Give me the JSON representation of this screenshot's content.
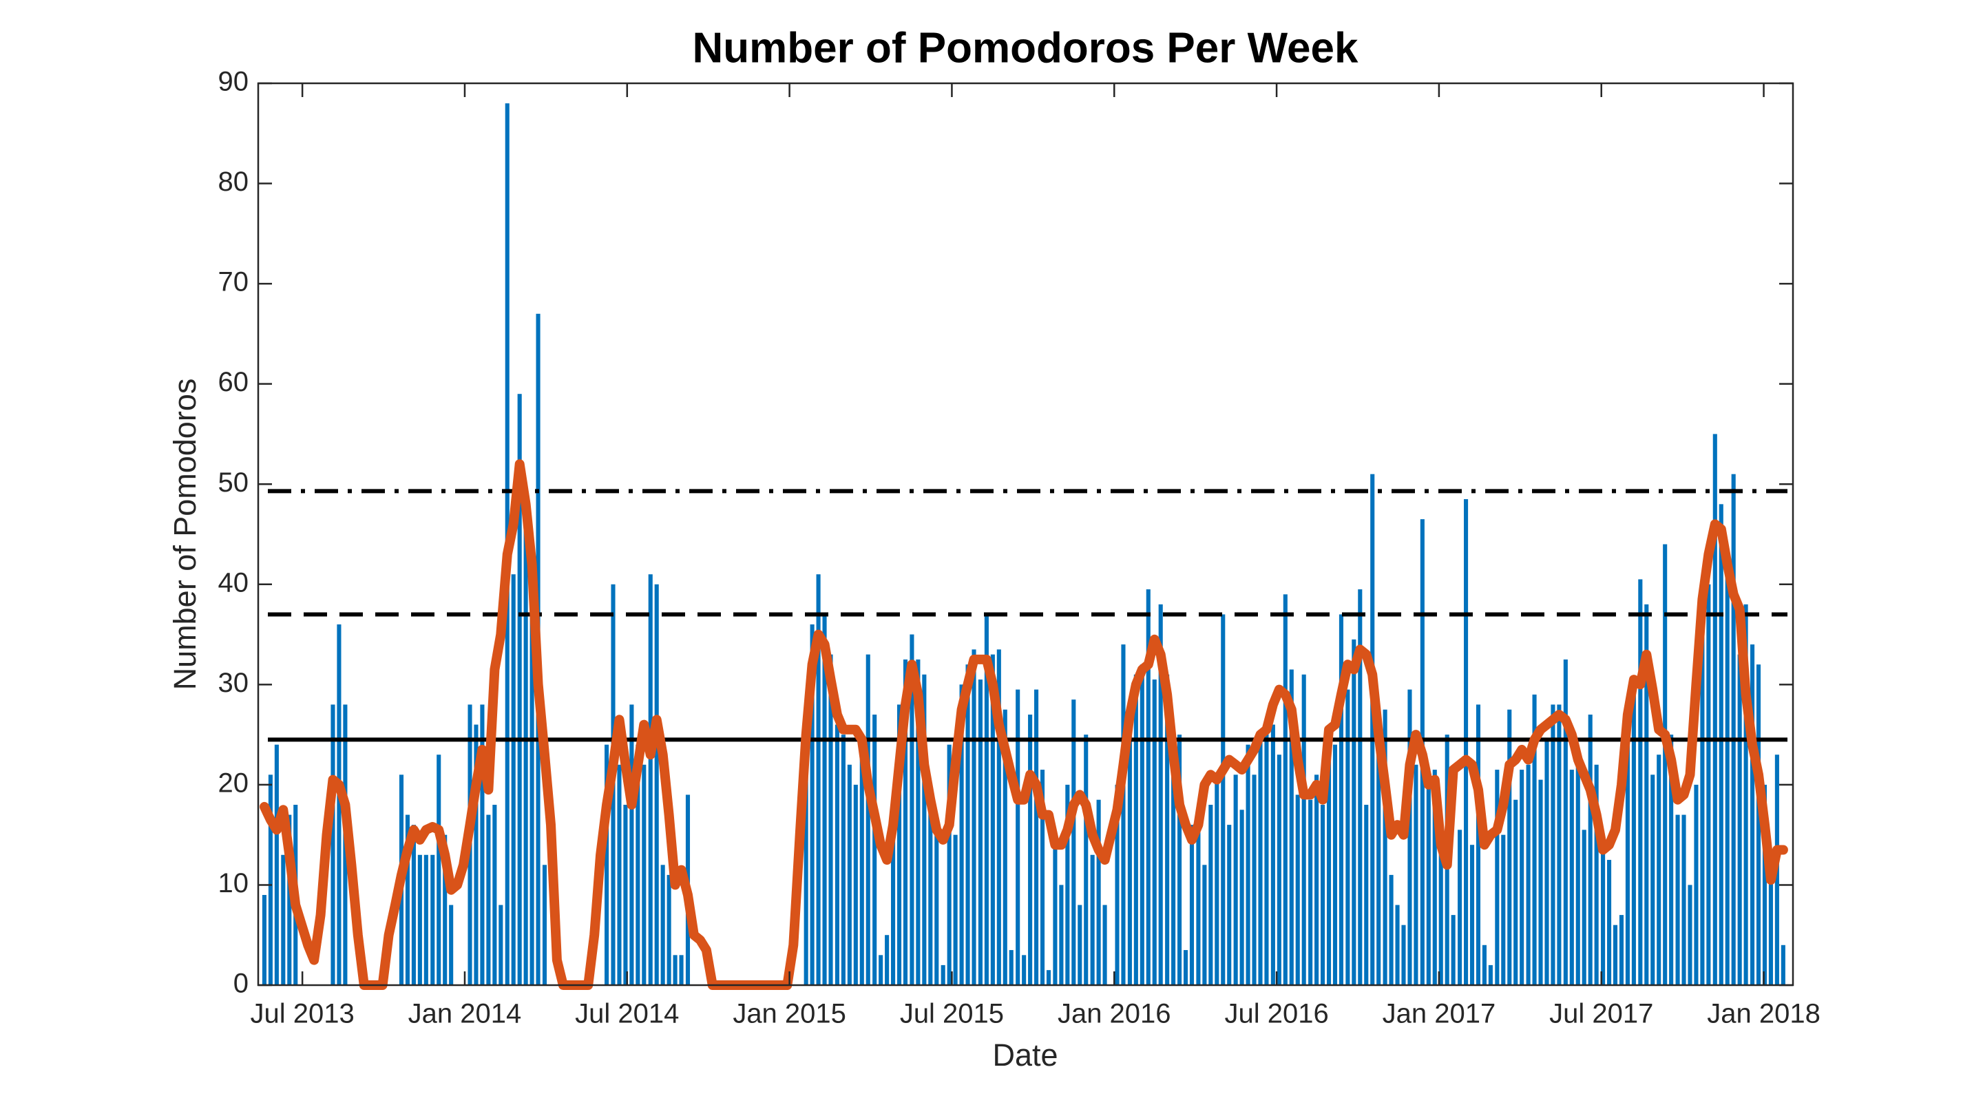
{
  "chart_data": {
    "type": "bar",
    "title": "Number of Pomodoros Per Week",
    "xlabel": "Date",
    "ylabel": "Number of Pomodoros",
    "x": [
      2013.383,
      2013.402,
      2013.421,
      2013.441,
      2013.46,
      2013.479,
      2013.498,
      2013.517,
      2013.536,
      2013.556,
      2013.575,
      2013.594,
      2013.613,
      2013.632,
      2013.651,
      2013.671,
      2013.69,
      2013.709,
      2013.728,
      2013.747,
      2013.766,
      2013.786,
      2013.805,
      2013.824,
      2013.843,
      2013.862,
      2013.881,
      2013.901,
      2013.92,
      2013.939,
      2013.958,
      2013.977,
      2013.996,
      2014.016,
      2014.035,
      2014.054,
      2014.073,
      2014.092,
      2014.111,
      2014.131,
      2014.15,
      2014.169,
      2014.188,
      2014.207,
      2014.226,
      2014.246,
      2014.265,
      2014.284,
      2014.303,
      2014.322,
      2014.342,
      2014.361,
      2014.38,
      2014.399,
      2014.418,
      2014.437,
      2014.457,
      2014.476,
      2014.495,
      2014.514,
      2014.533,
      2014.552,
      2014.572,
      2014.591,
      2014.61,
      2014.629,
      2014.648,
      2014.667,
      2014.687,
      2014.706,
      2014.725,
      2014.744,
      2014.763,
      2014.782,
      2014.802,
      2014.821,
      2014.84,
      2014.859,
      2014.878,
      2014.897,
      2014.917,
      2014.936,
      2014.955,
      2014.974,
      2014.993,
      2015.012,
      2015.032,
      2015.051,
      2015.07,
      2015.089,
      2015.108,
      2015.127,
      2015.147,
      2015.166,
      2015.185,
      2015.204,
      2015.223,
      2015.242,
      2015.262,
      2015.281,
      2015.3,
      2015.319,
      2015.338,
      2015.357,
      2015.377,
      2015.396,
      2015.415,
      2015.434,
      2015.453,
      2015.473,
      2015.492,
      2015.511,
      2015.53,
      2015.549,
      2015.568,
      2015.588,
      2015.607,
      2015.626,
      2015.645,
      2015.664,
      2015.683,
      2015.703,
      2015.722,
      2015.741,
      2015.76,
      2015.779,
      2015.798,
      2015.818,
      2015.837,
      2015.856,
      2015.875,
      2015.894,
      2015.913,
      2015.933,
      2015.952,
      2015.971,
      2015.99,
      2016.009,
      2016.028,
      2016.048,
      2016.067,
      2016.086,
      2016.105,
      2016.124,
      2016.143,
      2016.163,
      2016.182,
      2016.201,
      2016.22,
      2016.239,
      2016.259,
      2016.278,
      2016.297,
      2016.316,
      2016.335,
      2016.354,
      2016.374,
      2016.393,
      2016.412,
      2016.431,
      2016.45,
      2016.469,
      2016.489,
      2016.508,
      2016.527,
      2016.546,
      2016.565,
      2016.584,
      2016.604,
      2016.623,
      2016.642,
      2016.661,
      2016.68,
      2016.699,
      2016.719,
      2016.738,
      2016.757,
      2016.776,
      2016.795,
      2016.814,
      2016.834,
      2016.853,
      2016.872,
      2016.891,
      2016.91,
      2016.929,
      2016.949,
      2016.968,
      2016.987,
      2017.006,
      2017.025,
      2017.044,
      2017.064,
      2017.083,
      2017.102,
      2017.121,
      2017.14,
      2017.159,
      2017.179,
      2017.198,
      2017.217,
      2017.236,
      2017.255,
      2017.275,
      2017.294,
      2017.313,
      2017.332,
      2017.351,
      2017.37,
      2017.39,
      2017.409,
      2017.428,
      2017.447,
      2017.466,
      2017.485,
      2017.505,
      2017.524,
      2017.543,
      2017.562,
      2017.581,
      2017.6,
      2017.62,
      2017.639,
      2017.658,
      2017.677,
      2017.696,
      2017.715,
      2017.735,
      2017.754,
      2017.773,
      2017.792,
      2017.811,
      2017.83,
      2017.85,
      2017.869,
      2017.888,
      2017.907,
      2017.926,
      2017.945,
      2017.965,
      2017.984,
      2018.003,
      2018.022,
      2018.041,
      2018.06
    ],
    "series": [
      {
        "type": "bar",
        "color": "#0072bd",
        "values": [
          9,
          21,
          24,
          13,
          17,
          18,
          0,
          0,
          0,
          0,
          0,
          28,
          36,
          28,
          0,
          0,
          0,
          0,
          0,
          0,
          0,
          0,
          21,
          17,
          16,
          13,
          13,
          13,
          23,
          15,
          8,
          0,
          0,
          28,
          26,
          28,
          17,
          18,
          8,
          88,
          41,
          59,
          48,
          37,
          67,
          12,
          0,
          0,
          0,
          0,
          0,
          0,
          0,
          0,
          0,
          24,
          40,
          22,
          18,
          28,
          24,
          22,
          41,
          40,
          12,
          11,
          3,
          3,
          19,
          0,
          0,
          0,
          0,
          0,
          0,
          0,
          0,
          0,
          0,
          0,
          0,
          0,
          0,
          0,
          0,
          0,
          0,
          28,
          36,
          41,
          37,
          33,
          26,
          25,
          22,
          20,
          25,
          33,
          27,
          3,
          5,
          15,
          28,
          32.5,
          35,
          32.5,
          31,
          20,
          15,
          2,
          24,
          15,
          30,
          32,
          33.5,
          30.5,
          37,
          33,
          33.5,
          27.5,
          3.5,
          29.5,
          3,
          27,
          29.5,
          21.5,
          1.5,
          15,
          10,
          20,
          28.5,
          8,
          25,
          13,
          18.5,
          8,
          0,
          20,
          34,
          26,
          31,
          32,
          39.5,
          30.5,
          38,
          31,
          25,
          25,
          3.5,
          16,
          17.5,
          12,
          18,
          21,
          37,
          16,
          21,
          17.5,
          24,
          21,
          25,
          25.5,
          26,
          23,
          39,
          31.5,
          19,
          31,
          18.5,
          21,
          18,
          25,
          24,
          37,
          29.5,
          34.5,
          39.5,
          18,
          51,
          23.5,
          27.5,
          11,
          8,
          6,
          29.5,
          22,
          46.5,
          20.5,
          21.5,
          16.5,
          25,
          7,
          15.5,
          48.5,
          14,
          28,
          4,
          2,
          21.5,
          15,
          27.5,
          18.5,
          21.5,
          22,
          29,
          20.5,
          24.5,
          28,
          28,
          32.5,
          21.5,
          22.5,
          15.5,
          27,
          22,
          14.5,
          12.5,
          6,
          7,
          26.5,
          30,
          40.5,
          38,
          21,
          23,
          44,
          25,
          17,
          17,
          10,
          20,
          36,
          40,
          55,
          48,
          42,
          51,
          33,
          38,
          34,
          32,
          20,
          12,
          23,
          4
        ]
      },
      {
        "type": "line",
        "color": "#d95319",
        "values": [
          17.8,
          16.5,
          15.5,
          17.5,
          13,
          8,
          6,
          4,
          2.5,
          7,
          15,
          20.5,
          20,
          18,
          12,
          5,
          0,
          0,
          0,
          0,
          5,
          8,
          11,
          13.5,
          15.5,
          14.5,
          15.5,
          15.8,
          15.5,
          13,
          9.5,
          10,
          12,
          16,
          20,
          23.5,
          19.5,
          31.5,
          35,
          43,
          46,
          52,
          48,
          42,
          30,
          23,
          16,
          2.5,
          0,
          0,
          0,
          0,
          0,
          5,
          13,
          18,
          22,
          26.5,
          22,
          18,
          22,
          26,
          23,
          26.5,
          23,
          17,
          10,
          11.5,
          9,
          5,
          4.5,
          3.5,
          0,
          0,
          0,
          0,
          0,
          0,
          0,
          0,
          0,
          0,
          0,
          0,
          0,
          4,
          15,
          25,
          32,
          35,
          34,
          30.5,
          27,
          25.5,
          25.5,
          25.5,
          24.5,
          20,
          17,
          14,
          12.5,
          16,
          22,
          28,
          32,
          29,
          22,
          18.5,
          15.5,
          14.5,
          16,
          22,
          27.5,
          30,
          32.5,
          32.5,
          32.5,
          30,
          26,
          23.5,
          21,
          18.5,
          18.5,
          21,
          20,
          17,
          17,
          14,
          14,
          15.5,
          18,
          19,
          18,
          15,
          13.5,
          12.5,
          15,
          17.5,
          22,
          27,
          30,
          31.5,
          32,
          34.5,
          33,
          29,
          23,
          18,
          16,
          14.5,
          16,
          20,
          21,
          20.5,
          21.5,
          22.5,
          22,
          21.5,
          22.5,
          23.5,
          25,
          25.5,
          28,
          29.5,
          29,
          27.5,
          22.5,
          19,
          19,
          20,
          18.5,
          25.5,
          26,
          29,
          32,
          31.5,
          33.5,
          33,
          31,
          25,
          20,
          15,
          16,
          15,
          22,
          25,
          23,
          20,
          20.5,
          14,
          12,
          21.5,
          22,
          22.5,
          22,
          19.5,
          14,
          15,
          15.5,
          18,
          22,
          22.5,
          23.5,
          22.5,
          24.5,
          25.5,
          26,
          26.5,
          27,
          26.5,
          25,
          22.5,
          21,
          19.5,
          17,
          13.5,
          14,
          15.5,
          20,
          27,
          30.5,
          30,
          33,
          29.5,
          25.5,
          25,
          22.5,
          18.5,
          19,
          21,
          30,
          38.5,
          43,
          46,
          45.5,
          42,
          39,
          37.5,
          29,
          24,
          21,
          16,
          10.5,
          13.5,
          13.5
        ]
      }
    ],
    "reference_lines": [
      {
        "value": 24.5,
        "dash": "solid"
      },
      {
        "value": 37,
        "dash": "dashed"
      },
      {
        "value": 49.3,
        "dash": "dashdot"
      }
    ],
    "reference_color": "#000000",
    "xlim": [
      2013.364,
      2018.09
    ],
    "xticks": [
      {
        "value": 2013.5,
        "label": "Jul 2013"
      },
      {
        "value": 2014,
        "label": "Jan 2014"
      },
      {
        "value": 2014.5,
        "label": "Jul 2014"
      },
      {
        "value": 2015,
        "label": "Jan 2015"
      },
      {
        "value": 2015.5,
        "label": "Jul 2015"
      },
      {
        "value": 2016,
        "label": "Jan 2016"
      },
      {
        "value": 2016.5,
        "label": "Jul 2016"
      },
      {
        "value": 2017,
        "label": "Jan 2017"
      },
      {
        "value": 2017.5,
        "label": "Jul 2017"
      },
      {
        "value": 2018,
        "label": "Jan 2018"
      }
    ],
    "ylim": [
      0,
      90
    ],
    "yticks": [
      0,
      10,
      20,
      30,
      40,
      50,
      60,
      70,
      80,
      90
    ],
    "grid": false
  }
}
